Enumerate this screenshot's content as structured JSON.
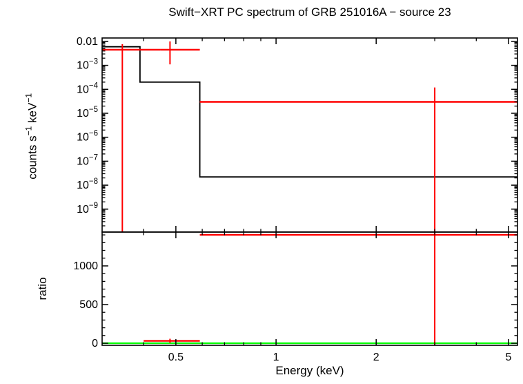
{
  "title": "Swift−XRT PC spectrum of GRB 251016A − source 23",
  "labels": {
    "counts_a": "counts s",
    "counts_sup1": "−1",
    "counts_b": " keV",
    "counts_sup2": "−1",
    "ratio": "ratio",
    "energy": "Energy (keV)"
  },
  "colors": {
    "background": "#ffffff",
    "axis": "#000000",
    "model": "#000000",
    "data": "#ff0000",
    "reference": "#00ff00"
  },
  "chart_data": {
    "type": "line",
    "title": "Swift−XRT PC spectrum of GRB 251016A − source 23",
    "xlabel": "Energy (keV)",
    "x_scale": "log",
    "xlim": [
      0.3,
      5.32
    ],
    "x_ticks": {
      "major": [
        {
          "value": 0.5,
          "label": "0.5"
        },
        {
          "value": 1,
          "label": "1"
        },
        {
          "value": 2,
          "label": "2"
        },
        {
          "value": 5,
          "label": "5"
        }
      ],
      "minor": [
        0.4,
        0.6,
        0.7,
        0.8,
        0.9,
        3,
        4
      ]
    },
    "panels": [
      {
        "name": "spectrum",
        "ylabel": "counts s⁻¹ keV⁻¹",
        "y_scale": "log",
        "ylim": [
          1.1e-10,
          0.0139
        ],
        "grid": false,
        "y_ticks": {
          "major": [
            {
              "value": 0.01,
              "label": "0.01",
              "exp": ""
            },
            {
              "value": 0.001,
              "label": "10",
              "exp": "−3"
            },
            {
              "value": 0.0001,
              "label": "10",
              "exp": "−4"
            },
            {
              "value": 1e-05,
              "label": "10",
              "exp": "−5"
            },
            {
              "value": 1e-06,
              "label": "10",
              "exp": "−6"
            },
            {
              "value": 1e-07,
              "label": "10",
              "exp": "−7"
            },
            {
              "value": 1e-08,
              "label": "10",
              "exp": "−8"
            },
            {
              "value": 1e-09,
              "label": "10",
              "exp": "−9"
            }
          ]
        },
        "model_step": {
          "name": "folded-model",
          "color": "#000000",
          "points": [
            [
              0.3,
              0.006
            ],
            [
              0.39,
              0.006
            ],
            [
              0.39,
              0.0002
            ],
            [
              0.59,
              0.0002
            ],
            [
              0.59,
              2.2e-08
            ],
            [
              5.32,
              2.2e-08
            ]
          ]
        },
        "data_series": {
          "name": "spectrum-data",
          "color": "#ff0000",
          "bins": [
            {
              "xlo": 0.3,
              "xhi": 0.45,
              "x": 0.345,
              "y": 0.0045,
              "ylo": 1.1e-10,
              "yhi": 0.0077
            },
            {
              "xlo": 0.45,
              "xhi": 0.59,
              "x": 0.48,
              "y": 0.0045,
              "ylo": 0.0011,
              "yhi": 0.01
            },
            {
              "xlo": 0.59,
              "xhi": 5.32,
              "x": 3.0,
              "y": 3e-05,
              "ylo": 1.1e-10,
              "yhi": 0.00012
            }
          ]
        }
      },
      {
        "name": "ratio",
        "ylabel": "ratio",
        "y_scale": "linear",
        "ylim": [
          -27,
          1437
        ],
        "grid": false,
        "y_ticks": {
          "major": [
            {
              "value": 0,
              "label": "0"
            },
            {
              "value": 500,
              "label": "500"
            },
            {
              "value": 1000,
              "label": "1000"
            }
          ],
          "minor_step": 100
        },
        "reference_line": {
          "y": 1,
          "color": "#00ff00"
        },
        "data_series": {
          "name": "ratio-data",
          "color": "#ff0000",
          "bins": [
            {
              "xlo": 0.4,
              "xhi": 0.59,
              "x": 0.48,
              "y": 30,
              "ylo": 5,
              "yhi": 58
            },
            {
              "xlo": 0.59,
              "xhi": 5.32,
              "x": 3.0,
              "y": 1400,
              "ylo": -27,
              "yhi": 1437
            }
          ]
        }
      }
    ]
  }
}
